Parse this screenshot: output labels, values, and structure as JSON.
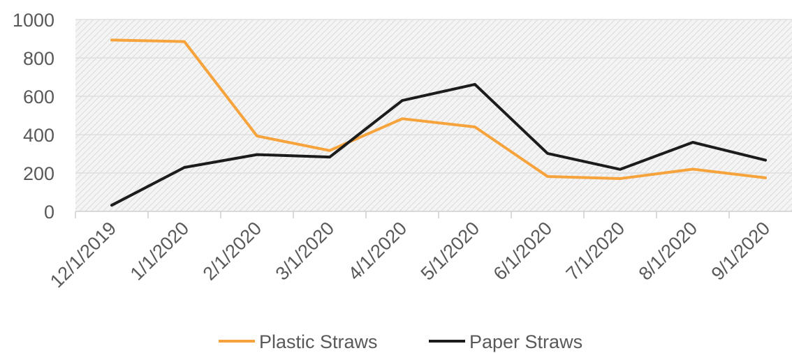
{
  "chart_data": {
    "type": "line",
    "title": "",
    "xlabel": "",
    "ylabel": "",
    "categories": [
      "12/1/2019",
      "1/1/2020",
      "2/1/2020",
      "3/1/2020",
      "4/1/2020",
      "5/1/2020",
      "6/1/2020",
      "7/1/2020",
      "8/1/2020",
      "9/1/2020"
    ],
    "y_ticks": [
      "0",
      "200",
      "400",
      "600",
      "800",
      "1000"
    ],
    "ylim": [
      0,
      1000
    ],
    "grid": true,
    "legend_position": "bottom",
    "series": [
      {
        "name": "Plastic Straws",
        "color": "#f7a33c",
        "values": [
          893,
          885,
          393,
          317,
          483,
          440,
          182,
          171,
          220,
          175
        ]
      },
      {
        "name": "Paper Straws",
        "color": "#1c1c1c",
        "values": [
          32,
          229,
          296,
          283,
          578,
          662,
          302,
          219,
          360,
          267
        ]
      }
    ]
  }
}
